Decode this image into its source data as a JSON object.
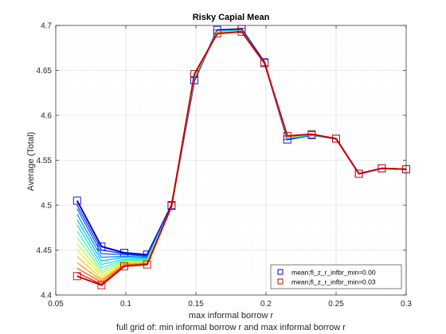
{
  "chart_data": {
    "type": "line",
    "title": "Risky Capial Mean",
    "xlabel": "max informal borrow r",
    "ylabel": "Average (Total)",
    "footnote": "full grid of: min informal borrow r and max informal borrow r",
    "xlim": [
      0.05,
      0.3
    ],
    "ylim": [
      4.4,
      4.7
    ],
    "xticks": [
      0.05,
      0.1,
      0.15,
      0.2,
      0.25,
      0.3
    ],
    "yticks": [
      4.4,
      4.45,
      4.5,
      4.55,
      4.6,
      4.65,
      4.7
    ],
    "xtick_labels": [
      "0.05",
      "0.1",
      "0.15",
      "0.2",
      "0.25",
      "0.3"
    ],
    "ytick_labels": [
      "4.4",
      "4.45",
      "4.5",
      "4.55",
      "4.6",
      "4.65",
      "4.7"
    ],
    "grid": true,
    "legend_position": "bottom-right",
    "x": [
      0.0652,
      0.0826,
      0.0989,
      0.1152,
      0.1326,
      0.1489,
      0.1652,
      0.1826,
      0.1989,
      0.2152,
      0.2326,
      0.25,
      0.2663,
      0.2826,
      0.3
    ],
    "series": [
      {
        "name": "mean;fl_z_r_infbr_min=0.00",
        "color": "#0000cc",
        "marker": "square",
        "values": [
          4.505,
          4.454,
          4.447,
          4.445,
          4.5,
          4.639,
          4.695,
          4.696,
          4.659,
          4.573,
          4.578,
          4.574,
          4.535,
          4.541,
          4.54
        ]
      },
      {
        "color": "#0022ee",
        "values": [
          4.5,
          4.45,
          4.446,
          4.444,
          4.499,
          4.64,
          4.695,
          4.695,
          4.659,
          4.573,
          4.578,
          4.574,
          4.535,
          4.541,
          4.54
        ]
      },
      {
        "color": "#0050ff",
        "values": [
          4.496,
          4.446,
          4.445,
          4.443,
          4.499,
          4.64,
          4.694,
          4.695,
          4.658,
          4.574,
          4.578,
          4.574,
          4.535,
          4.541,
          4.54
        ]
      },
      {
        "color": "#0088ff",
        "values": [
          4.49,
          4.442,
          4.443,
          4.442,
          4.499,
          4.641,
          4.694,
          4.695,
          4.658,
          4.574,
          4.578,
          4.574,
          4.535,
          4.541,
          4.54
        ]
      },
      {
        "color": "#00b8ff",
        "values": [
          4.484,
          4.438,
          4.442,
          4.441,
          4.498,
          4.641,
          4.694,
          4.694,
          4.658,
          4.574,
          4.578,
          4.574,
          4.535,
          4.541,
          4.54
        ]
      },
      {
        "color": "#00e0f0",
        "values": [
          4.478,
          4.434,
          4.44,
          4.44,
          4.498,
          4.642,
          4.693,
          4.694,
          4.658,
          4.575,
          4.578,
          4.574,
          4.535,
          4.541,
          4.54
        ]
      },
      {
        "color": "#30f0c0",
        "values": [
          4.471,
          4.43,
          4.439,
          4.439,
          4.498,
          4.642,
          4.693,
          4.694,
          4.658,
          4.575,
          4.579,
          4.574,
          4.535,
          4.541,
          4.54
        ]
      },
      {
        "color": "#70ff80",
        "values": [
          4.464,
          4.427,
          4.438,
          4.438,
          4.498,
          4.643,
          4.693,
          4.694,
          4.658,
          4.575,
          4.579,
          4.574,
          4.535,
          4.541,
          4.54
        ]
      },
      {
        "color": "#b0ff40",
        "values": [
          4.457,
          4.424,
          4.437,
          4.437,
          4.498,
          4.643,
          4.692,
          4.694,
          4.658,
          4.576,
          4.579,
          4.574,
          4.535,
          4.541,
          4.54
        ]
      },
      {
        "color": "#e8f000",
        "values": [
          4.45,
          4.421,
          4.436,
          4.436,
          4.498,
          4.644,
          4.692,
          4.693,
          4.658,
          4.576,
          4.579,
          4.574,
          4.535,
          4.541,
          4.54
        ]
      },
      {
        "color": "#ffc000",
        "values": [
          4.443,
          4.418,
          4.435,
          4.436,
          4.498,
          4.644,
          4.692,
          4.693,
          4.658,
          4.576,
          4.579,
          4.574,
          4.535,
          4.541,
          4.54
        ]
      },
      {
        "color": "#ff8800",
        "values": [
          4.436,
          4.416,
          4.434,
          4.435,
          4.498,
          4.645,
          4.691,
          4.693,
          4.658,
          4.577,
          4.579,
          4.574,
          4.535,
          4.541,
          4.54
        ]
      },
      {
        "color": "#ff5000",
        "values": [
          4.43,
          4.414,
          4.433,
          4.435,
          4.498,
          4.645,
          4.691,
          4.693,
          4.658,
          4.577,
          4.579,
          4.574,
          4.535,
          4.541,
          4.54
        ]
      },
      {
        "color": "#e81800",
        "values": [
          4.425,
          4.412,
          4.432,
          4.434,
          4.499,
          4.646,
          4.691,
          4.693,
          4.658,
          4.577,
          4.579,
          4.574,
          4.535,
          4.541,
          4.54
        ]
      },
      {
        "name": "mean;fl_z_r_infbr_min=0.03",
        "color": "#cc0000",
        "marker": "square",
        "values": [
          4.421,
          4.411,
          4.432,
          4.434,
          4.499,
          4.646,
          4.691,
          4.693,
          4.658,
          4.577,
          4.579,
          4.574,
          4.535,
          4.541,
          4.54
        ]
      }
    ]
  }
}
